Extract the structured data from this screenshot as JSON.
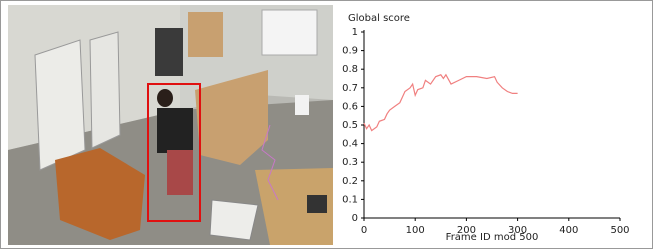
{
  "chart_data": {
    "type": "line",
    "title": "Global score",
    "x_label": "Frame ID mod 500",
    "x": [
      0,
      5,
      10,
      15,
      25,
      30,
      40,
      45,
      50,
      60,
      70,
      75,
      80,
      90,
      95,
      100,
      105,
      115,
      120,
      130,
      140,
      150,
      155,
      160,
      170,
      185,
      200,
      220,
      240,
      255,
      260,
      270,
      280,
      290,
      300
    ],
    "values": [
      0.51,
      0.48,
      0.5,
      0.47,
      0.49,
      0.52,
      0.53,
      0.56,
      0.58,
      0.6,
      0.62,
      0.65,
      0.68,
      0.7,
      0.72,
      0.66,
      0.69,
      0.7,
      0.74,
      0.72,
      0.76,
      0.77,
      0.75,
      0.77,
      0.72,
      0.74,
      0.76,
      0.76,
      0.75,
      0.76,
      0.73,
      0.7,
      0.68,
      0.67,
      0.67
    ],
    "color": "#f08080",
    "xlim": [
      0,
      500
    ],
    "xticks": [
      0,
      100,
      200,
      300,
      400,
      500
    ],
    "ylim": [
      0,
      1
    ],
    "yticks": [
      0,
      0.1,
      0.2,
      0.3,
      0.4,
      0.5,
      0.6,
      0.7,
      0.8,
      0.9,
      1
    ]
  }
}
